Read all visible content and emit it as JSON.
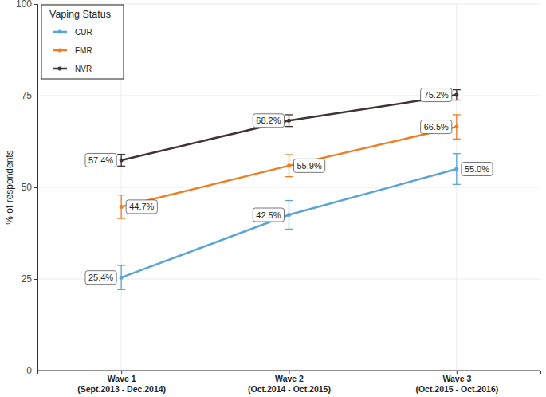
{
  "chart_data": {
    "type": "line",
    "y_label": "% of respondents",
    "legend_title": "Vaping Status",
    "categories": [
      "Wave 1\n(Sept.2013 - Dec.2014)",
      "Wave 2\n(Oct.2014 - Oct.2015)",
      "Wave 3\n(Oct.2015 - Oct.2016)"
    ],
    "series": [
      {
        "name": "CUR",
        "color": "#5aa4d4",
        "values": [
          25.4,
          42.5,
          55.0
        ],
        "value_labels": [
          "25.4%",
          "42.5%",
          "55.0%"
        ],
        "errors": [
          3.3,
          3.9,
          4.2
        ]
      },
      {
        "name": "FMR",
        "color": "#ef7d22",
        "values": [
          44.7,
          55.9,
          66.5
        ],
        "value_labels": [
          "44.7%",
          "55.9%",
          "66.5%"
        ],
        "errors": [
          3.2,
          3.0,
          3.3
        ]
      },
      {
        "name": "NVR",
        "color": "#3e3431",
        "values": [
          57.4,
          68.2,
          75.2
        ],
        "value_labels": [
          "57.4%",
          "68.2%",
          "75.2%"
        ],
        "errors": [
          1.6,
          1.6,
          1.4
        ]
      }
    ],
    "ylim": [
      0,
      100
    ],
    "yticks": [
      0,
      25,
      50,
      75,
      100
    ],
    "grid": true,
    "legend": "top-left",
    "data_labels": true,
    "marker": "circle"
  }
}
